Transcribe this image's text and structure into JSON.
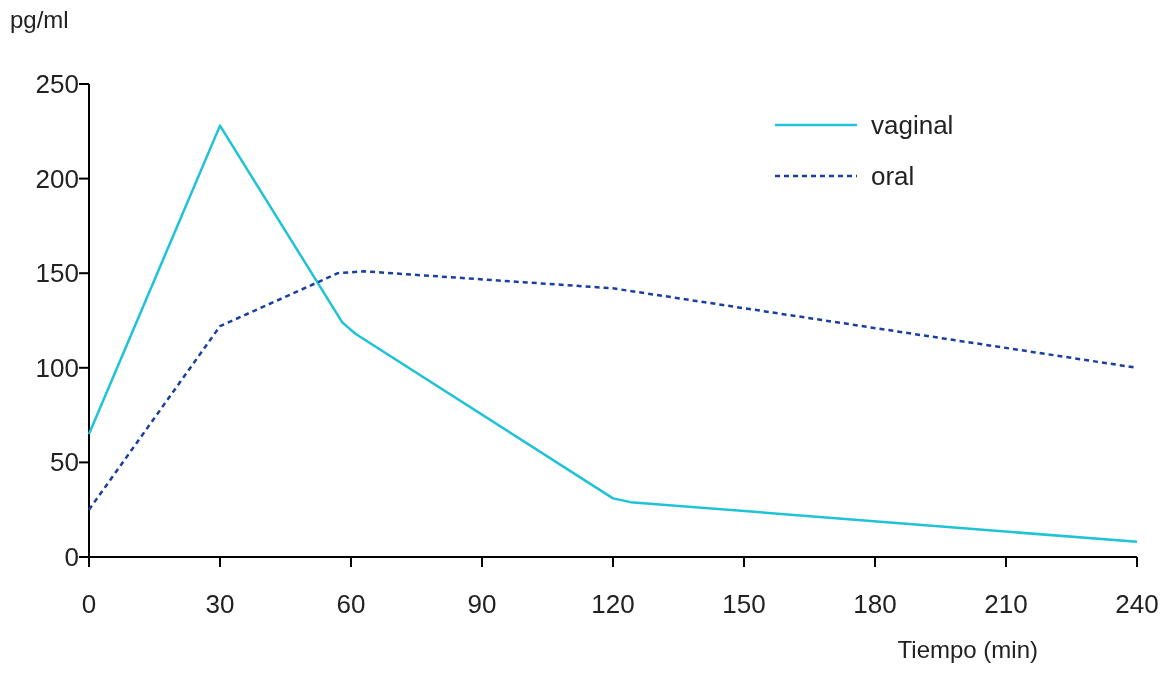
{
  "chart_data": {
    "type": "line",
    "xlabel": "Tiempo (min)",
    "ylabel": "pg/ml",
    "xlim": [
      0,
      240
    ],
    "ylim": [
      0,
      250
    ],
    "xticks": [
      0,
      30,
      60,
      90,
      120,
      150,
      180,
      210,
      240
    ],
    "yticks": [
      0,
      50,
      100,
      150,
      200,
      250
    ],
    "grid": false,
    "legend": "top right",
    "marker": "none",
    "series": [
      {
        "name": "vaginal",
        "color": "#1ec3d7",
        "line_style": "solid",
        "x": [
          0,
          30,
          58,
          61,
          120,
          124,
          240
        ],
        "values": [
          65,
          228,
          124,
          118,
          31,
          29,
          8
        ]
      },
      {
        "name": "oral",
        "color": "#1a3fa0",
        "line_style": "dashed",
        "x": [
          0,
          30,
          57,
          63,
          120,
          240
        ],
        "values": [
          25,
          122,
          150,
          151,
          142,
          100
        ]
      }
    ]
  }
}
